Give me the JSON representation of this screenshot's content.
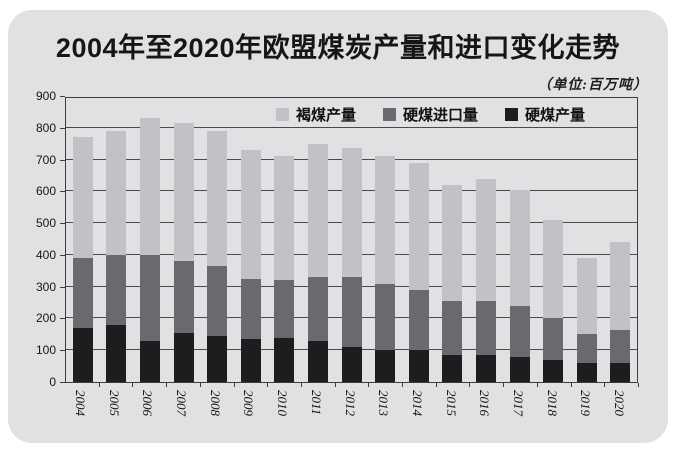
{
  "page": {
    "title": "2004年至2020年欧盟煤炭产量和进口变化走势",
    "unit_note": "（单位:百万吨）"
  },
  "chart_data": {
    "type": "bar",
    "stacked": true,
    "title": "2004年至2020年欧盟煤炭产量和进口变化走势",
    "unit": "百万吨",
    "xlabel": "",
    "ylabel": "",
    "ylim": [
      0,
      900
    ],
    "ytick_step": 100,
    "grid": true,
    "legend_position": "top-inside",
    "categories": [
      "2004",
      "2005",
      "2006",
      "2007",
      "2008",
      "2009",
      "2010",
      "2011",
      "2012",
      "2013",
      "2014",
      "2015",
      "2016",
      "2017",
      "2018",
      "2019",
      "2020"
    ],
    "series": [
      {
        "name": "硬煤产量",
        "color": "#1d1d1f",
        "values": [
          170,
          180,
          130,
          155,
          145,
          135,
          140,
          130,
          110,
          100,
          100,
          85,
          85,
          80,
          70,
          60,
          60
        ]
      },
      {
        "name": "硬煤进口量",
        "color": "#6a6a6e",
        "values": [
          220,
          220,
          270,
          225,
          220,
          190,
          180,
          200,
          220,
          210,
          190,
          170,
          170,
          160,
          130,
          90,
          105
        ]
      },
      {
        "name": "褐煤产量",
        "color": "#c2c2c6",
        "values": [
          380,
          390,
          430,
          435,
          425,
          405,
          390,
          420,
          405,
          400,
          400,
          365,
          385,
          365,
          310,
          240,
          275
        ]
      }
    ],
    "totals": [
      770,
      790,
      830,
      815,
      790,
      730,
      710,
      750,
      735,
      710,
      690,
      620,
      640,
      605,
      510,
      390,
      440
    ],
    "legend": [
      {
        "label": "褐煤产量",
        "color": "#c2c2c6"
      },
      {
        "label": "硬煤进口量",
        "color": "#6a6a6e"
      },
      {
        "label": "硬煤产量",
        "color": "#1d1d1f"
      }
    ]
  },
  "colors": {
    "card_background": "#e1e1e3",
    "page_background": "#ffffff",
    "axis_line": "#3e3e3e",
    "grid_line": "#4a4a4a",
    "text": "#161616"
  }
}
